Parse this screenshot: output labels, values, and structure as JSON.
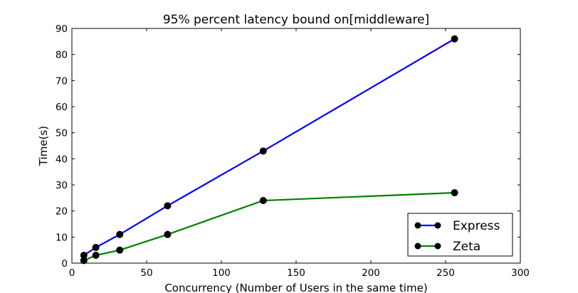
{
  "chart_data": {
    "type": "line",
    "title": "95% percent latency bound on[middleware]",
    "xlabel": "Concurrency (Number of Users in the same time)",
    "ylabel": "Time(s)",
    "xlim": [
      0,
      300
    ],
    "ylim": [
      0,
      90
    ],
    "xticks": [
      0,
      50,
      100,
      150,
      200,
      250,
      300
    ],
    "yticks": [
      0,
      10,
      20,
      30,
      40,
      50,
      60,
      70,
      80,
      90
    ],
    "grid": false,
    "legend_position": "lower-right",
    "series": [
      {
        "name": "Express",
        "color": "#0000ff",
        "marker": "o",
        "x": [
          8,
          16,
          32,
          64,
          128,
          256
        ],
        "y": [
          3,
          6,
          11,
          22,
          43,
          86
        ]
      },
      {
        "name": "Zeta",
        "color": "#008000",
        "marker": "o",
        "x": [
          8,
          16,
          32,
          64,
          128,
          256
        ],
        "y": [
          1,
          3,
          5,
          11,
          24,
          27
        ]
      }
    ]
  }
}
